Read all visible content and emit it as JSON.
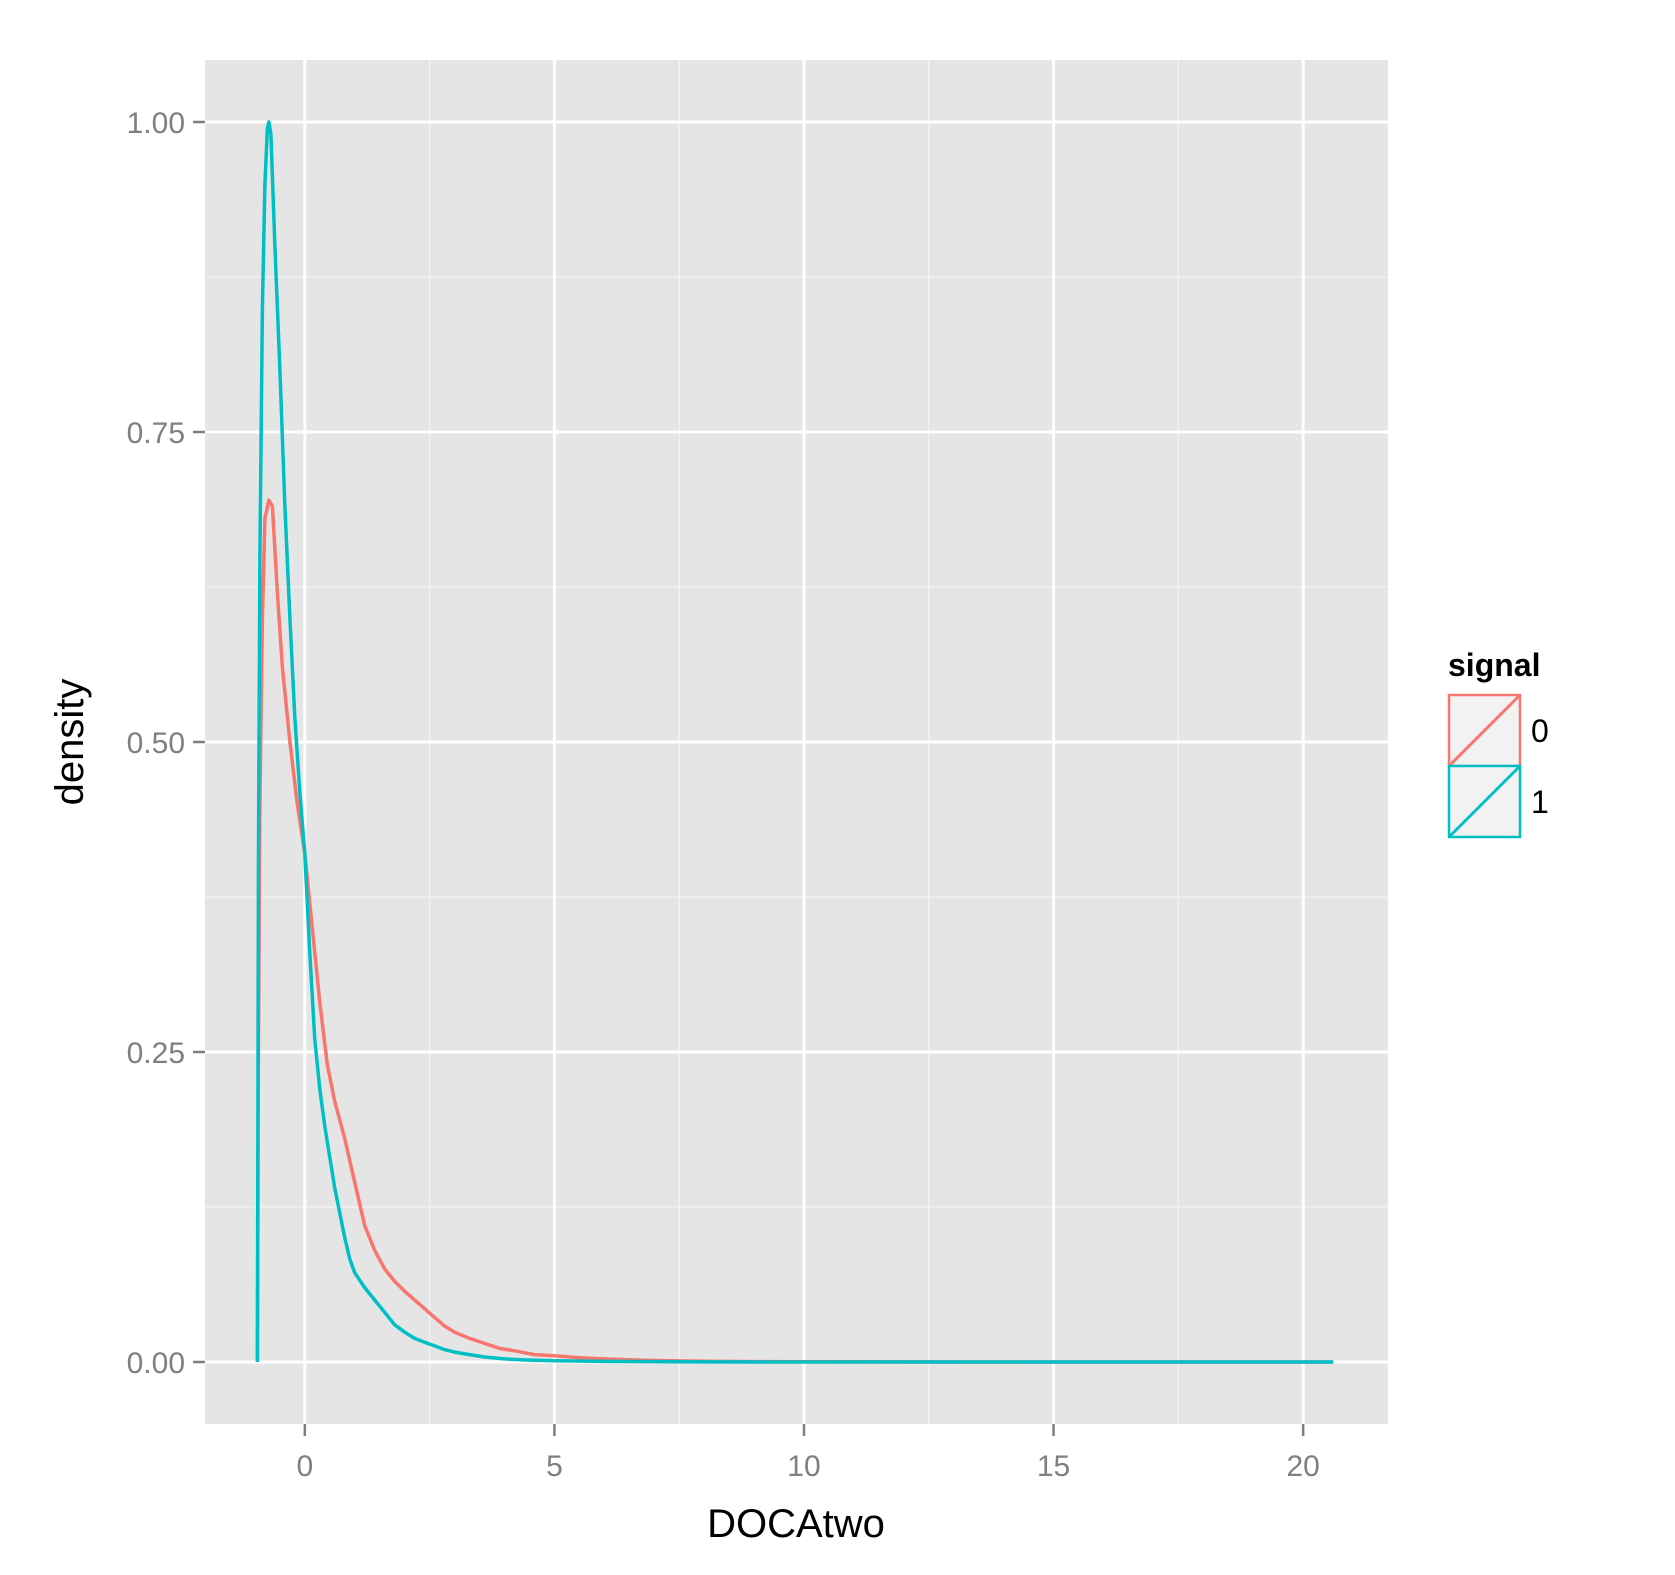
{
  "chart_data": {
    "type": "line",
    "xlabel": "DOCAtwo",
    "ylabel": "density",
    "xlim": [
      -2,
      21.7
    ],
    "ylim": [
      -0.05,
      1.05
    ],
    "x_ticks": [
      0,
      5,
      10,
      15,
      20
    ],
    "x_tick_labels": [
      "0",
      "5",
      "10",
      "15",
      "20"
    ],
    "y_ticks": [
      0,
      0.25,
      0.5,
      0.75,
      1
    ],
    "y_tick_labels": [
      "0.00",
      "0.25",
      "0.50",
      "0.75",
      "1.00"
    ],
    "grid": true,
    "legend": {
      "title": "signal",
      "position": "right"
    },
    "colors": {
      "panel": "#e5e5e5",
      "grid": "#ffffff",
      "0": "#f8766d",
      "1": "#00bfc4"
    },
    "series": [
      {
        "name": "0",
        "color": "#f8766d",
        "points": [
          [
            -0.95,
            0.0
          ],
          [
            -0.93,
            0.25
          ],
          [
            -0.9,
            0.45
          ],
          [
            -0.85,
            0.6
          ],
          [
            -0.8,
            0.68
          ],
          [
            -0.72,
            0.695
          ],
          [
            -0.65,
            0.69
          ],
          [
            -0.55,
            0.62
          ],
          [
            -0.45,
            0.56
          ],
          [
            -0.3,
            0.5
          ],
          [
            -0.15,
            0.45
          ],
          [
            0.0,
            0.41
          ],
          [
            0.15,
            0.35
          ],
          [
            0.3,
            0.29
          ],
          [
            0.45,
            0.24
          ],
          [
            0.6,
            0.21
          ],
          [
            0.8,
            0.18
          ],
          [
            1.0,
            0.145
          ],
          [
            1.2,
            0.11
          ],
          [
            1.4,
            0.09
          ],
          [
            1.6,
            0.075
          ],
          [
            1.8,
            0.065
          ],
          [
            2.0,
            0.057
          ],
          [
            2.2,
            0.05
          ],
          [
            2.4,
            0.043
          ],
          [
            2.6,
            0.036
          ],
          [
            2.8,
            0.029
          ],
          [
            3.0,
            0.024
          ],
          [
            3.3,
            0.019
          ],
          [
            3.6,
            0.015
          ],
          [
            3.9,
            0.011
          ],
          [
            4.2,
            0.009
          ],
          [
            4.6,
            0.006
          ],
          [
            5.0,
            0.005
          ],
          [
            5.5,
            0.0035
          ],
          [
            6.0,
            0.0025
          ],
          [
            6.5,
            0.0018
          ],
          [
            7.0,
            0.0012
          ],
          [
            7.5,
            0.0009
          ],
          [
            8.0,
            0.0006
          ],
          [
            9.0,
            0.0003
          ],
          [
            10.0,
            0.0002
          ],
          [
            12.0,
            0.0001
          ],
          [
            15.0,
            0.0
          ],
          [
            20.6,
            0.0
          ]
        ]
      },
      {
        "name": "1",
        "color": "#00bfc4",
        "points": [
          [
            -0.95,
            0.0
          ],
          [
            -0.93,
            0.4
          ],
          [
            -0.9,
            0.65
          ],
          [
            -0.85,
            0.85
          ],
          [
            -0.8,
            0.95
          ],
          [
            -0.75,
            0.995
          ],
          [
            -0.72,
            1.0
          ],
          [
            -0.68,
            0.99
          ],
          [
            -0.6,
            0.9
          ],
          [
            -0.5,
            0.8
          ],
          [
            -0.4,
            0.69
          ],
          [
            -0.3,
            0.6
          ],
          [
            -0.2,
            0.52
          ],
          [
            -0.1,
            0.46
          ],
          [
            0.0,
            0.41
          ],
          [
            0.1,
            0.33
          ],
          [
            0.2,
            0.26
          ],
          [
            0.3,
            0.22
          ],
          [
            0.4,
            0.19
          ],
          [
            0.5,
            0.165
          ],
          [
            0.6,
            0.14
          ],
          [
            0.7,
            0.12
          ],
          [
            0.8,
            0.1
          ],
          [
            0.9,
            0.083
          ],
          [
            1.0,
            0.072
          ],
          [
            1.2,
            0.06
          ],
          [
            1.4,
            0.05
          ],
          [
            1.6,
            0.04
          ],
          [
            1.8,
            0.03
          ],
          [
            2.0,
            0.024
          ],
          [
            2.2,
            0.019
          ],
          [
            2.4,
            0.016
          ],
          [
            2.6,
            0.013
          ],
          [
            2.8,
            0.01
          ],
          [
            3.0,
            0.008
          ],
          [
            3.3,
            0.006
          ],
          [
            3.6,
            0.004
          ],
          [
            4.0,
            0.0025
          ],
          [
            4.5,
            0.0015
          ],
          [
            5.0,
            0.001
          ],
          [
            6.0,
            0.0005
          ],
          [
            7.0,
            0.0003
          ],
          [
            8.0,
            0.0001
          ],
          [
            10.0,
            0.0
          ],
          [
            20.6,
            0.0
          ]
        ]
      }
    ]
  }
}
